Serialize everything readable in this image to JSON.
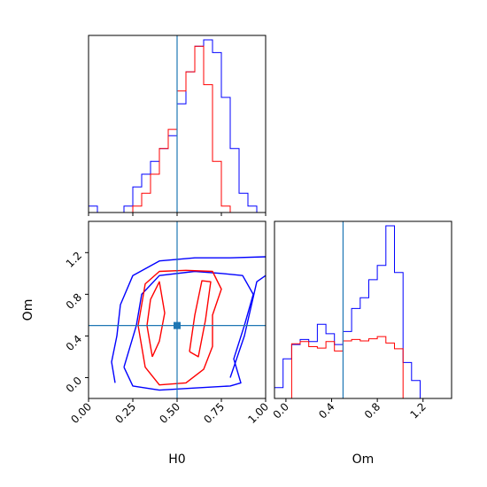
{
  "chart_data": {
    "type": "corner",
    "parameters": [
      "H0",
      "Om"
    ],
    "truth": {
      "H0": 0.5,
      "Om": 0.5
    },
    "colors": {
      "series_a": "#0000ff",
      "series_b": "#ff0000",
      "truth": "#1f77b4",
      "frame": "#000000"
    },
    "panels": [
      {
        "id": "hist-H0",
        "type": "histogram",
        "parameter": "H0",
        "xlim": [
          0.0,
          1.0
        ],
        "x_ticks": [
          0.0,
          0.25,
          0.5,
          0.75,
          1.0
        ],
        "bin_edges": [
          0.0,
          0.05,
          0.1,
          0.15,
          0.2,
          0.25,
          0.3,
          0.35,
          0.4,
          0.45,
          0.5,
          0.55,
          0.6,
          0.65,
          0.7,
          0.75,
          0.8,
          0.85,
          0.9,
          0.95,
          1.0
        ],
        "series": [
          {
            "color": "blue",
            "counts": [
              1,
              0,
              0,
              0,
              1,
              4,
              6,
              8,
              10,
              12,
              17,
              22,
              26,
              27,
              25,
              18,
              10,
              3,
              1,
              0
            ]
          },
          {
            "color": "red",
            "counts": [
              0,
              0,
              0,
              0,
              0,
              1,
              3,
              6,
              10,
              13,
              19,
              22,
              26,
              20,
              8,
              1,
              0,
              0,
              0,
              0
            ]
          }
        ]
      },
      {
        "id": "contour-H0-Om",
        "type": "contour",
        "xparameter": "H0",
        "yparameter": "Om",
        "xlim": [
          0.0,
          1.0
        ],
        "ylim": [
          -0.2,
          1.5
        ],
        "x_ticks": [
          0.0,
          0.25,
          0.5,
          0.75,
          1.0
        ],
        "y_ticks": [
          0.0,
          0.4,
          0.8,
          1.2
        ],
        "series": [
          {
            "color": "blue",
            "levels": [
              [
                [
                  0.15,
                  -0.05
                ],
                [
                  0.13,
                  0.15
                ],
                [
                  0.16,
                  0.4
                ],
                [
                  0.18,
                  0.7
                ],
                [
                  0.25,
                  0.98
                ],
                [
                  0.4,
                  1.12
                ],
                [
                  0.6,
                  1.15
                ],
                [
                  0.8,
                  1.15
                ],
                [
                  1.0,
                  1.16
                ]
              ],
              [
                [
                  0.2,
                  0.1
                ],
                [
                  0.27,
                  0.5
                ],
                [
                  0.3,
                  0.8
                ],
                [
                  0.4,
                  0.98
                ],
                [
                  0.6,
                  1.02
                ],
                [
                  0.75,
                  1.0
                ],
                [
                  0.87,
                  0.98
                ],
                [
                  0.93,
                  0.8
                ],
                [
                  0.88,
                  0.5
                ],
                [
                  0.82,
                  0.18
                ],
                [
                  0.86,
                  -0.05
                ],
                [
                  0.8,
                  -0.08
                ],
                [
                  0.6,
                  -0.1
                ],
                [
                  0.4,
                  -0.12
                ],
                [
                  0.25,
                  -0.08
                ],
                [
                  0.2,
                  0.1
                ]
              ],
              [
                [
                  0.8,
                  0.0
                ],
                [
                  0.88,
                  0.4
                ],
                [
                  0.95,
                  0.92
                ],
                [
                  1.0,
                  0.98
                ]
              ]
            ]
          },
          {
            "color": "red",
            "levels": [
              [
                [
                  0.28,
                  0.5
                ],
                [
                  0.32,
                  0.9
                ],
                [
                  0.4,
                  1.02
                ],
                [
                  0.55,
                  1.03
                ],
                [
                  0.7,
                  1.02
                ],
                [
                  0.75,
                  0.85
                ],
                [
                  0.7,
                  0.6
                ],
                [
                  0.7,
                  0.3
                ],
                [
                  0.65,
                  0.08
                ],
                [
                  0.55,
                  -0.05
                ],
                [
                  0.4,
                  -0.07
                ],
                [
                  0.32,
                  0.1
                ],
                [
                  0.28,
                  0.5
                ]
              ],
              [
                [
                  0.36,
                  0.2
                ],
                [
                  0.33,
                  0.5
                ],
                [
                  0.35,
                  0.75
                ],
                [
                  0.4,
                  0.92
                ],
                [
                  0.43,
                  0.62
                ],
                [
                  0.4,
                  0.35
                ],
                [
                  0.36,
                  0.2
                ]
              ],
              [
                [
                  0.57,
                  0.25
                ],
                [
                  0.6,
                  0.6
                ],
                [
                  0.64,
                  0.93
                ],
                [
                  0.69,
                  0.92
                ],
                [
                  0.66,
                  0.55
                ],
                [
                  0.62,
                  0.2
                ],
                [
                  0.57,
                  0.25
                ]
              ]
            ]
          }
        ]
      },
      {
        "id": "hist-Om",
        "type": "histogram",
        "parameter": "Om",
        "xlim": [
          -0.1,
          1.45
        ],
        "x_ticks": [
          0.0,
          0.4,
          0.8,
          1.2
        ],
        "bin_edges": [
          -0.1,
          -0.025,
          0.05,
          0.125,
          0.2,
          0.275,
          0.35,
          0.425,
          0.5,
          0.575,
          0.65,
          0.725,
          0.8,
          0.875,
          0.95,
          1.025,
          1.1,
          1.175
        ],
        "series": [
          {
            "color": "blue",
            "counts": [
              1.5,
              5.5,
              7.5,
              8.2,
              7.9,
              10.3,
              9.0,
              7.5,
              9.3,
              12.5,
              14.0,
              16.5,
              18.5,
              24.0,
              17.5,
              5.0,
              2.5
            ]
          },
          {
            "color": "red",
            "counts": [
              0,
              0,
              7.6,
              7.9,
              7.2,
              7.0,
              7.9,
              6.6,
              8.0,
              8.2,
              8.0,
              8.3,
              8.6,
              7.7,
              6.9,
              0,
              0
            ]
          }
        ]
      }
    ]
  }
}
